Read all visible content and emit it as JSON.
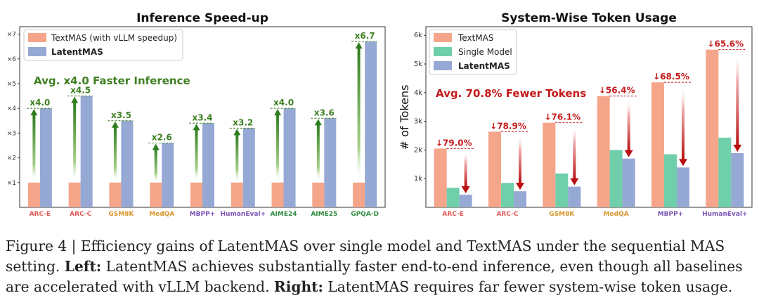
{
  "chart_data": [
    {
      "type": "bar",
      "title": "Inference Speed-up",
      "categories": [
        "ARC-E",
        "ARC-C",
        "GSM8K",
        "MedQA",
        "MBPP+",
        "HumanEval+",
        "AIME24",
        "AIME25",
        "GPQA-D"
      ],
      "category_colors": [
        "#e05a5a",
        "#e05a5a",
        "#d9952b",
        "#d9952b",
        "#7a52b3",
        "#7a52b3",
        "#2e8b3e",
        "#2e8b3e",
        "#2e8b3e"
      ],
      "series": [
        {
          "name": "TextMAS (with vLLM speedup)",
          "color": "#f4a58a",
          "values": [
            1,
            1,
            1,
            1,
            1,
            1,
            1,
            1,
            1
          ]
        },
        {
          "name": "LatentMAS",
          "color": "#96a8d4",
          "values": [
            4.0,
            4.5,
            3.5,
            2.6,
            3.4,
            3.2,
            4.0,
            3.6,
            6.7
          ]
        }
      ],
      "speedup_labels": [
        "x4.0",
        "x4.5",
        "x3.5",
        "x2.6",
        "x3.4",
        "x3.2",
        "x4.0",
        "x3.6",
        "x6.7"
      ],
      "ytick_labels": [
        "×1",
        "×2",
        "×3",
        "×4",
        "×5",
        "×6",
        "×7"
      ],
      "ylim": [
        0,
        7.3
      ],
      "annotation": "Avg. x4.0 Faster Inference",
      "annotation_color": "#3e7f22",
      "legend_position": "top-left",
      "grid": false
    },
    {
      "type": "bar",
      "title": "System-Wise Token Usage",
      "ylabel": "# of Tokens",
      "categories": [
        "ARC-E",
        "ARC-C",
        "GSM8K",
        "MedQA",
        "MBPP+",
        "HumanEval+"
      ],
      "category_colors": [
        "#e05a5a",
        "#e05a5a",
        "#d9952b",
        "#d9952b",
        "#7a52b3",
        "#7a52b3"
      ],
      "series": [
        {
          "name": "TextMAS",
          "color": "#f4a58a",
          "values": [
            2050,
            2640,
            2950,
            3880,
            4360,
            5500
          ]
        },
        {
          "name": "Single Model",
          "color": "#6fcfaa",
          "values": [
            680,
            850,
            1180,
            2000,
            1850,
            2430
          ]
        },
        {
          "name": "LatentMAS",
          "color": "#96a8d4",
          "values": [
            440,
            560,
            720,
            1700,
            1390,
            1890
          ]
        }
      ],
      "reduction_labels": [
        "↓79.0%",
        "↓78.9%",
        "↓76.1%",
        "↓56.4%",
        "↓68.5%",
        "↓65.6%"
      ],
      "ytick_values": [
        1000,
        2000,
        3000,
        4000,
        5000,
        6000
      ],
      "ytick_labels": [
        "1k",
        "2k",
        "3k",
        "4k",
        "5k",
        "6k"
      ],
      "ylim": [
        0,
        6300
      ],
      "annotation": "Avg. 70.8% Fewer Tokens",
      "annotation_color": "#c41a1a",
      "legend_position": "top-left",
      "grid": false
    }
  ],
  "caption": {
    "line1": "Figure 4 | Efficiency gains of LatentMAS over single model and TextMAS under the sequential MAS",
    "line2_pre": "setting. ",
    "line2_bold": "Left:",
    "line2_post": " LatentMAS achieves substantially faster end-to-end inference, even though all baselines",
    "line3_pre": "are accelerated with vLLM backend. ",
    "line3_bold": "Right:",
    "line3_post": " LatentMAS requires far fewer system-wise token usage."
  }
}
